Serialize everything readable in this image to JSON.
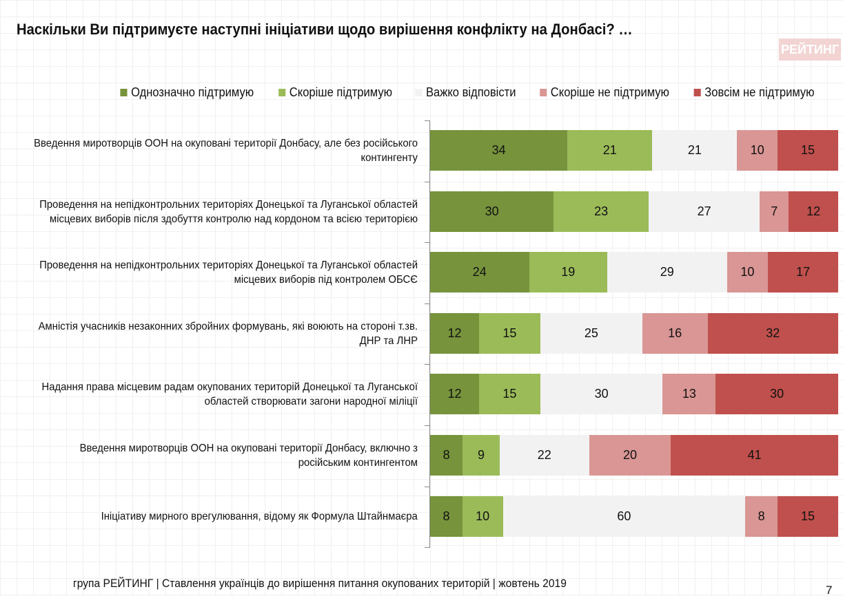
{
  "title": "Наскільки Ви підтримуєте наступні ініціативи щодо вирішення конфлікту на Донбасі? …",
  "logo_text": "РЕЙТИНГ",
  "footer": "група РЕЙТИНГ | Ставлення українців до вирішення питання окупованих територій  | жовтень  2019",
  "page_number": "7",
  "chart_data": {
    "type": "bar",
    "orientation": "horizontal",
    "stacked": true,
    "legend_position": "top",
    "series": [
      {
        "name": "Однозначно підтримую",
        "color": "#77933c",
        "values": [
          34,
          30,
          24,
          12,
          12,
          8,
          8
        ]
      },
      {
        "name": "Скоріше підтримую",
        "color": "#9bbb59",
        "values": [
          21,
          23,
          19,
          15,
          15,
          9,
          10
        ]
      },
      {
        "name": "Важко відповісти",
        "color": "#f2f2f2",
        "values": [
          21,
          27,
          29,
          25,
          30,
          22,
          60
        ]
      },
      {
        "name": "Скоріше не підтримую",
        "color": "#d99694",
        "values": [
          10,
          7,
          10,
          16,
          13,
          20,
          8
        ]
      },
      {
        "name": "Зовсім не підтримую",
        "color": "#c0504d",
        "values": [
          15,
          12,
          17,
          32,
          30,
          41,
          15
        ]
      }
    ],
    "categories": [
      "Введення миротворців ООН на окуповані території Донбасу, але без російського контингенту",
      "Проведення на непідконтрольних територіях Донецької та Луганської областей місцевих виборів після здобуття контролю над кордоном та всією територією",
      "Проведення на непідконтрольних територіях Донецької та Луганської областей місцевих виборів під контролем ОБСЄ",
      "Амністія учасників незаконних збройних формувань, які воюють на стороні т.зв. ДНР та ЛНР",
      "Надання права місцевим радам окупованих територій Донецької та Луганської областей створювати загони народної міліції",
      "Введення миротворців ООН на окуповані території Донбасу, включно з російським контингентом",
      "Ініціативу мирного врегулювання, відому як Формула Штайнмаєра"
    ]
  }
}
